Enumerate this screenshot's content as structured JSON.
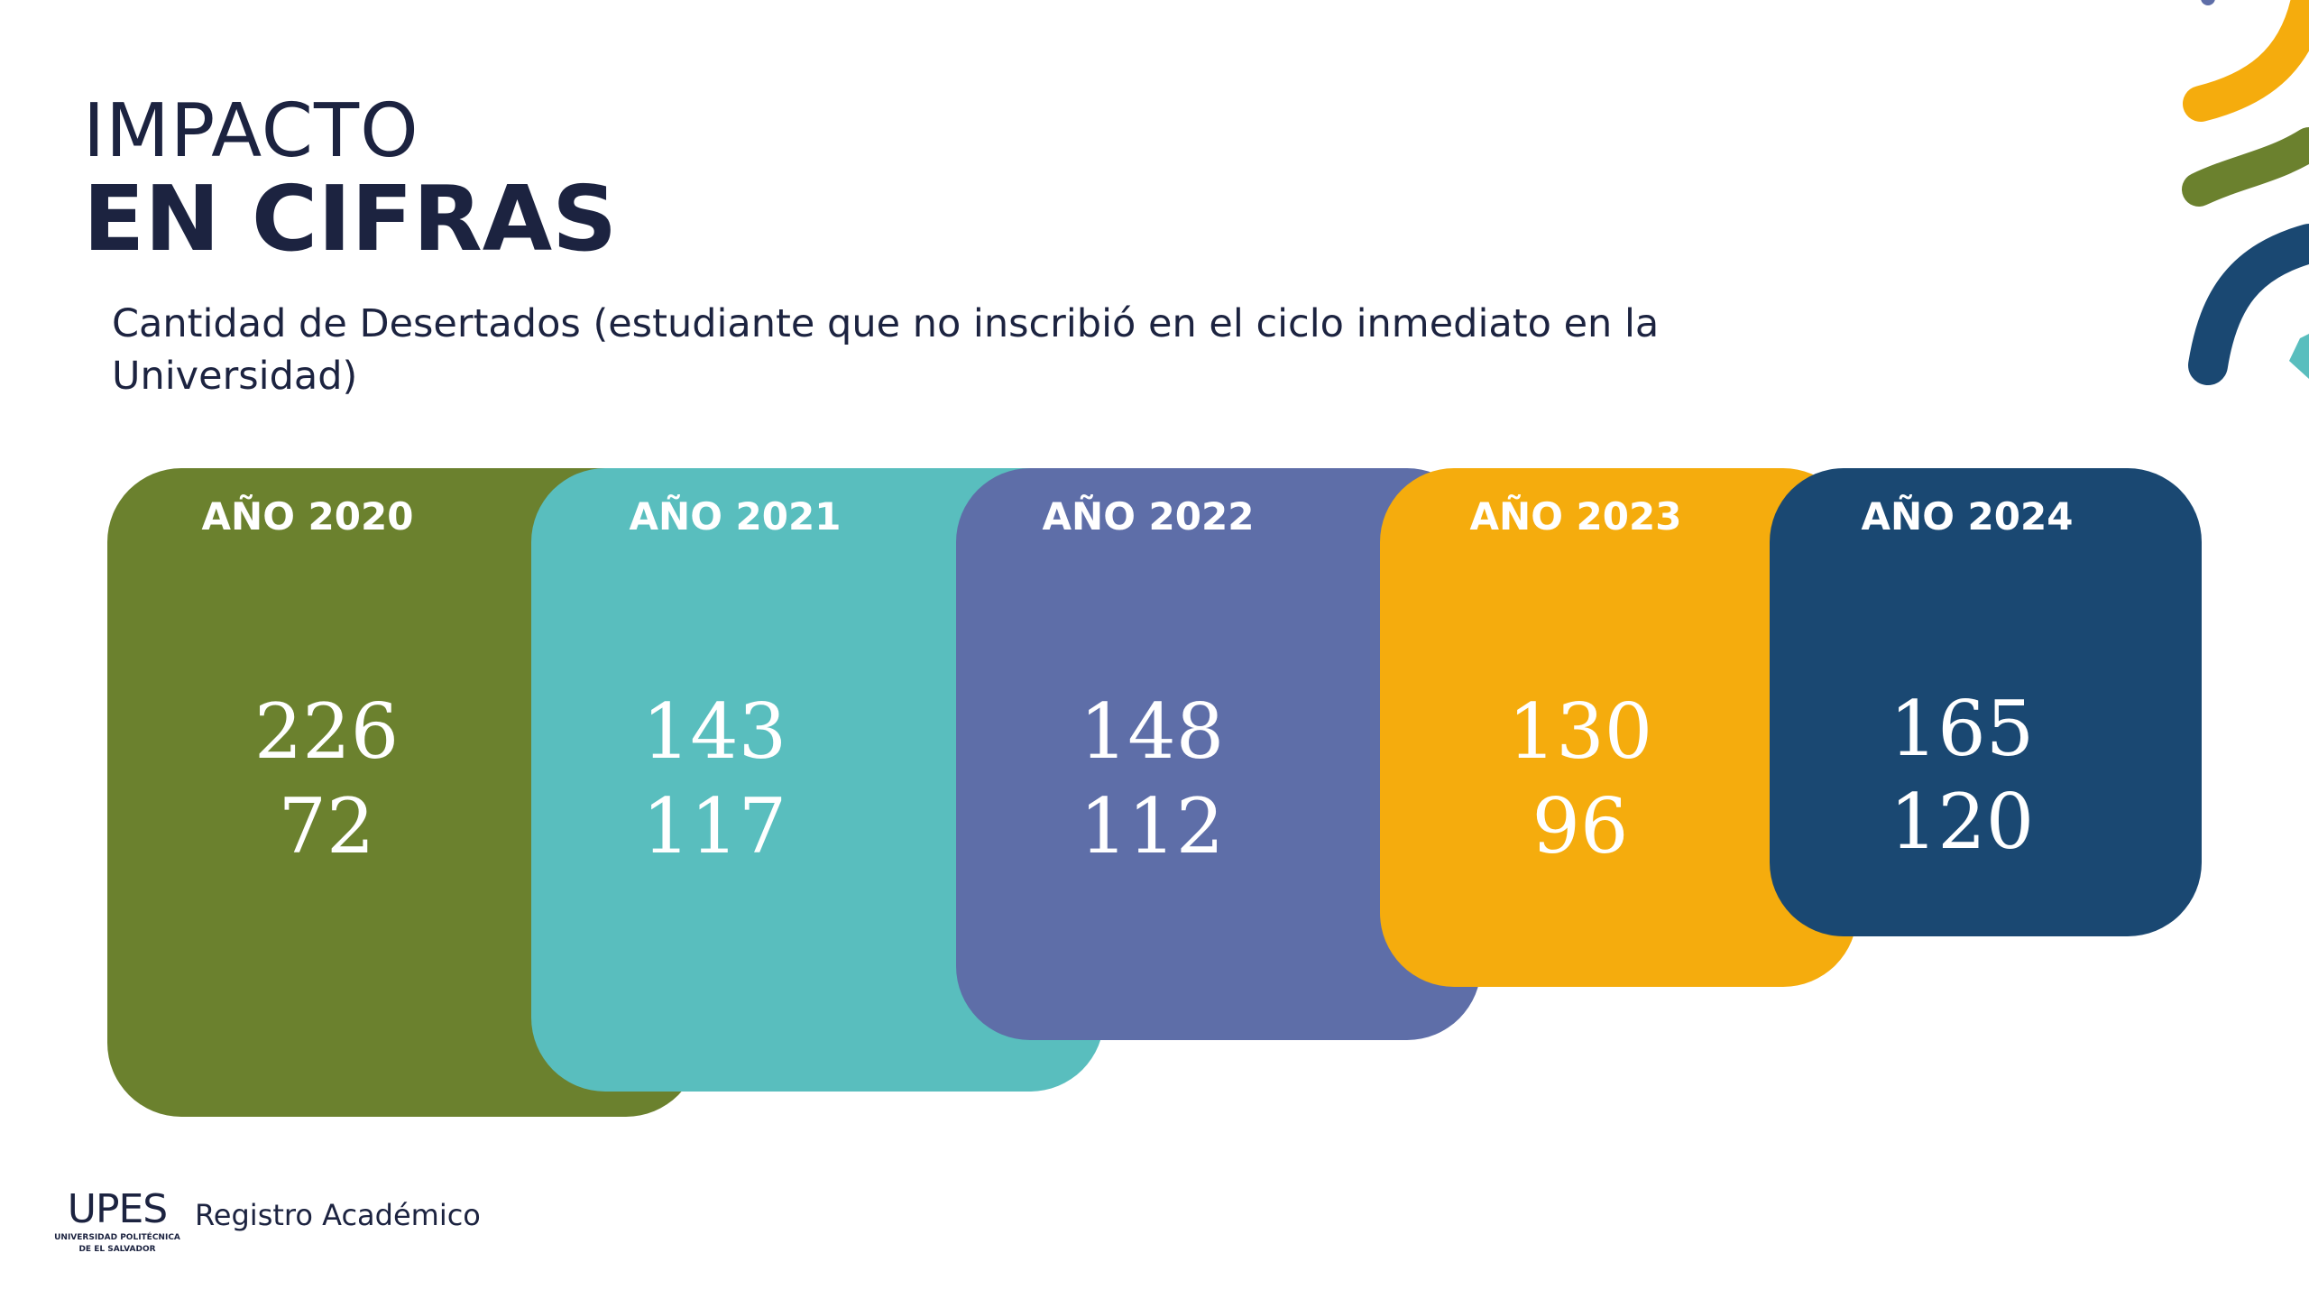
{
  "title": {
    "line1": "IMPACTO",
    "line2": "EN CIFRAS"
  },
  "subtitle": "Cantidad de Desertados (estudiante que no inscribió en el ciclo inmediato en la Universidad)",
  "cards": [
    {
      "label": "AÑO 2020",
      "value1": "226",
      "value2": "72",
      "color": "#6b812e"
    },
    {
      "label": "AÑO 2021",
      "value1": "143",
      "value2": "117",
      "color": "#59bebe"
    },
    {
      "label": "AÑO 2022",
      "value1": "148",
      "value2": "112",
      "color": "#5e6ea8"
    },
    {
      "label": "AÑO 2023",
      "value1": "130",
      "value2": "96",
      "color": "#f5ac0d"
    },
    {
      "label": "AÑO 2024",
      "value1": "165",
      "value2": "120",
      "color": "#1a4872"
    }
  ],
  "footer": {
    "logo_text": "UPES",
    "logo_subtitle_1": "UNIVERSIDAD POLITÉCNICA",
    "logo_subtitle_2": "DE EL SALVADOR",
    "department": "Registro Académico"
  }
}
